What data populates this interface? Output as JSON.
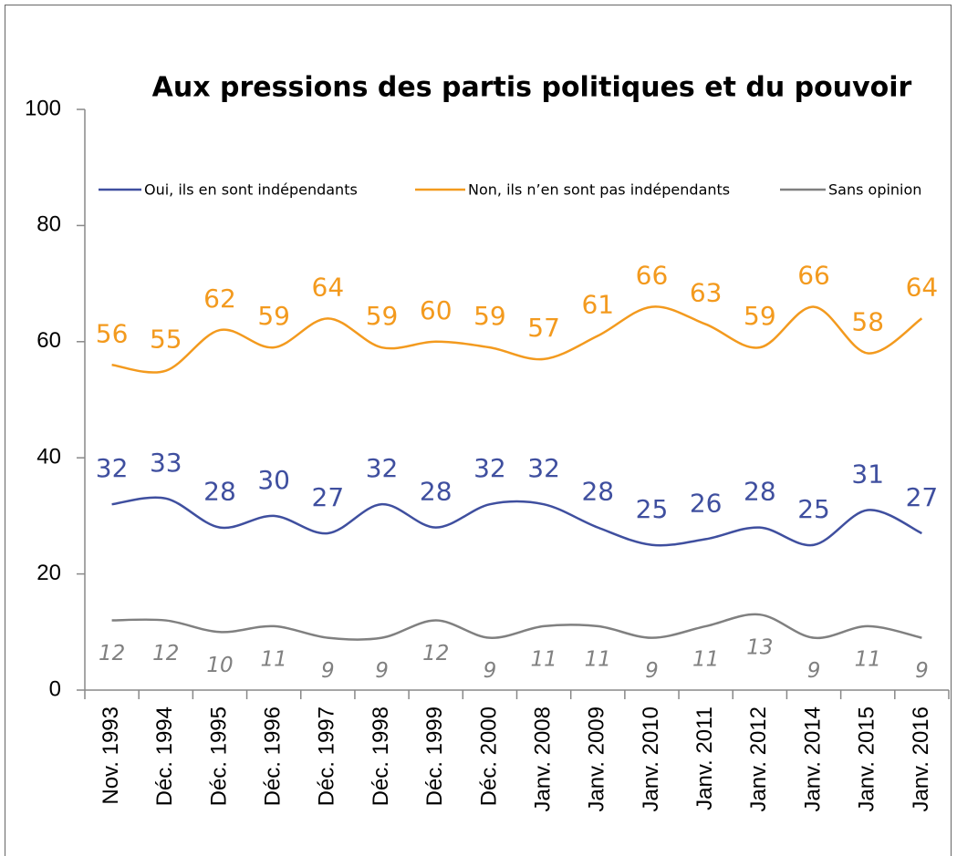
{
  "chart_data": {
    "type": "line",
    "title": "Aux pressions des partis politiques et du pouvoir",
    "categories": [
      "Nov. 1993",
      "Déc. 1994",
      "Déc. 1995",
      "Déc. 1996",
      "Déc. 1997",
      "Déc. 1998",
      "Déc. 1999",
      "Déc. 2000",
      "Janv. 2008",
      "Janv. 2009",
      "Janv. 2010",
      "Janv. 2011",
      "Janv. 2012",
      "Janv. 2014",
      "Janv. 2015",
      "Janv. 2016"
    ],
    "series": [
      {
        "name": "Oui, ils en sont indépendants",
        "color": "#3f4f9f",
        "values": [
          32,
          33,
          28,
          30,
          27,
          32,
          28,
          32,
          32,
          28,
          25,
          26,
          28,
          25,
          31,
          27
        ]
      },
      {
        "name": "Non, ils n’en sont pas indépendants",
        "color": "#f39a1e",
        "values": [
          56,
          55,
          62,
          59,
          64,
          59,
          60,
          59,
          57,
          61,
          66,
          63,
          59,
          66,
          58,
          64
        ]
      },
      {
        "name": "Sans opinion",
        "color": "#808080",
        "values": [
          12,
          12,
          10,
          11,
          9,
          9,
          12,
          9,
          11,
          11,
          9,
          11,
          13,
          9,
          11,
          9
        ]
      }
    ],
    "ylim": [
      0,
      100
    ],
    "yticks": [
      0,
      20,
      40,
      60,
      80,
      100
    ]
  }
}
